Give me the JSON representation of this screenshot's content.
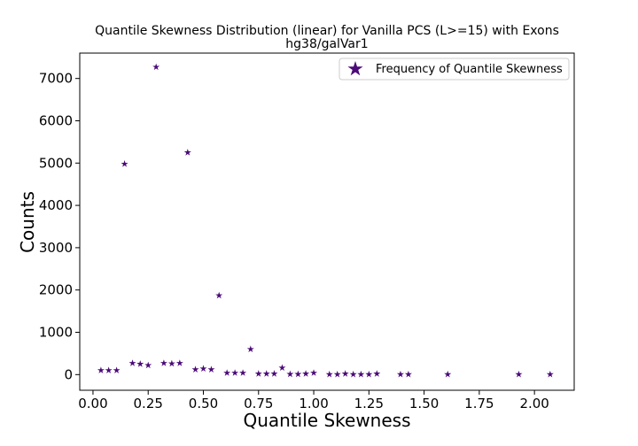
{
  "chart_data": {
    "type": "scatter",
    "title": "Quantile Skewness Distribution (linear) for Vanilla PCS (L>=15) with Exons",
    "subtitle": "hg38/galVar1",
    "xlabel": "Quantile Skewness",
    "ylabel": "Counts",
    "xlim": [
      -0.06,
      2.18
    ],
    "ylim": [
      -370,
      7600
    ],
    "xticks": [
      "0.00",
      "0.25",
      "0.50",
      "0.75",
      "1.00",
      "1.25",
      "1.50",
      "1.75",
      "2.00"
    ],
    "yticks": [
      "0",
      "1000",
      "2000",
      "3000",
      "4000",
      "5000",
      "6000",
      "7000"
    ],
    "legend_placement": "top-right",
    "grid": false,
    "marker": "star",
    "marker_color": "#4b0a78",
    "series": [
      {
        "name": "Frequency of Quantile Skewness",
        "x": [
          0.036,
          0.071,
          0.107,
          0.143,
          0.179,
          0.214,
          0.25,
          0.286,
          0.321,
          0.357,
          0.393,
          0.429,
          0.464,
          0.5,
          0.536,
          0.571,
          0.607,
          0.643,
          0.679,
          0.714,
          0.75,
          0.786,
          0.821,
          0.857,
          0.893,
          0.929,
          0.964,
          1.0,
          1.071,
          1.107,
          1.143,
          1.179,
          1.214,
          1.25,
          1.286,
          1.393,
          1.429,
          1.607,
          1.929,
          2.071
        ],
        "y": [
          100,
          100,
          100,
          4980,
          270,
          250,
          220,
          7270,
          270,
          260,
          270,
          5250,
          120,
          140,
          120,
          1870,
          40,
          40,
          40,
          600,
          20,
          20,
          20,
          160,
          10,
          10,
          20,
          40,
          5,
          5,
          20,
          5,
          5,
          5,
          20,
          5,
          5,
          5,
          5,
          5
        ]
      }
    ]
  }
}
